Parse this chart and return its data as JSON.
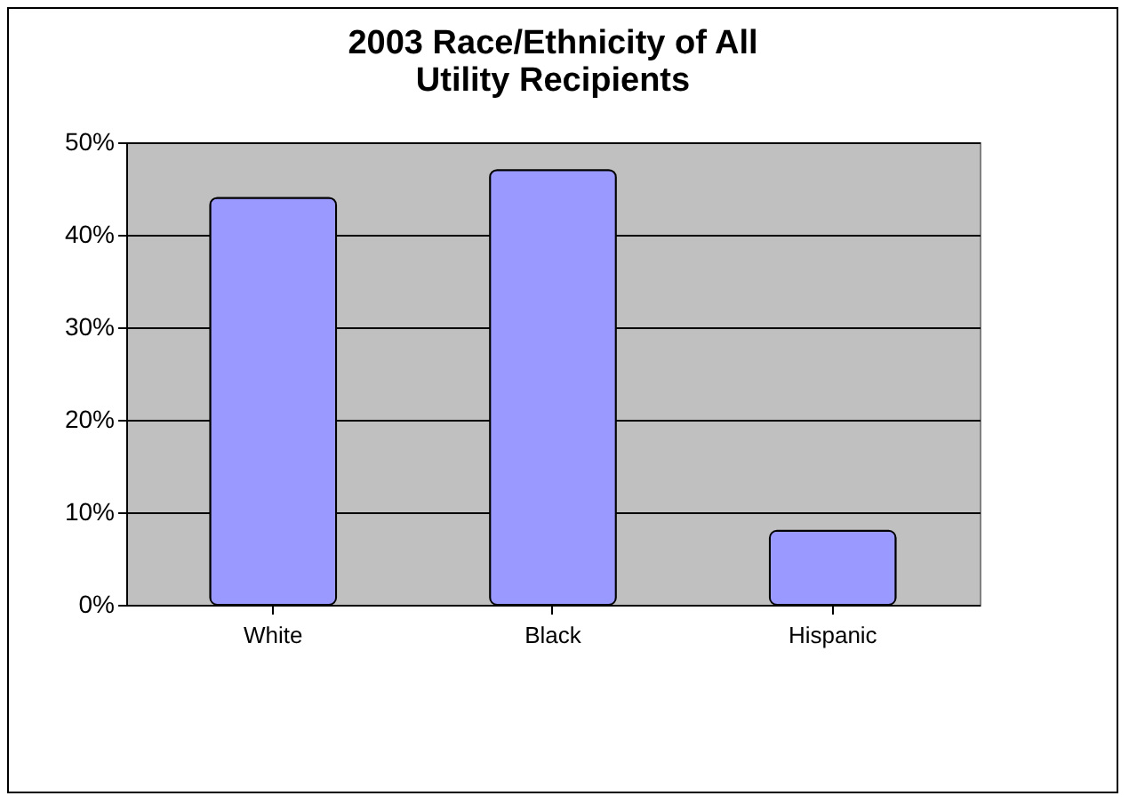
{
  "chart_data": {
    "type": "bar",
    "title": "2003 Race/Ethnicity of All Utility Recipients",
    "categories": [
      "White",
      "Black",
      "Hispanic"
    ],
    "values": [
      44,
      47,
      8
    ],
    "color": "#9999ff",
    "ylim": [
      0,
      50
    ],
    "yticks": [
      {
        "value": 0,
        "label": "0%"
      },
      {
        "value": 10,
        "label": "10%"
      },
      {
        "value": 20,
        "label": "20%"
      },
      {
        "value": 30,
        "label": "30%"
      },
      {
        "value": 40,
        "label": "40%"
      },
      {
        "value": 50,
        "label": "50%"
      }
    ],
    "grid": "y"
  }
}
